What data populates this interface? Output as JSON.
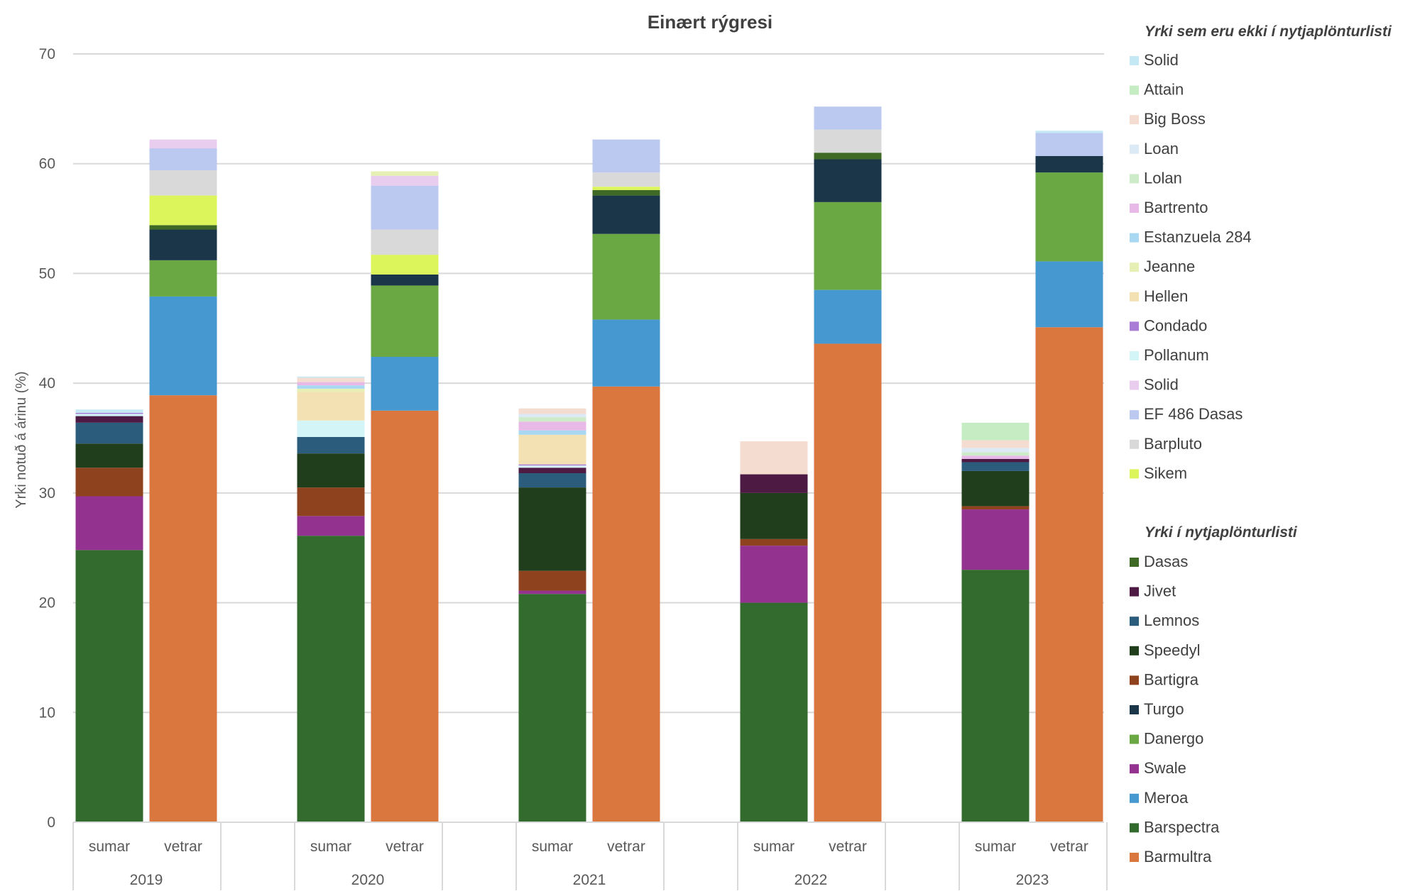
{
  "chart_data": {
    "type": "bar",
    "stacked": true,
    "title": "Einært rýgresi",
    "xlabel": "",
    "ylabel": "Yrki notuð á árinu (%)",
    "ylim": [
      0,
      70
    ],
    "yticks": [
      0,
      10,
      20,
      30,
      40,
      50,
      60,
      70
    ],
    "grid": true,
    "groups": [
      "2019",
      "2020",
      "2021",
      "2022",
      "2023"
    ],
    "subcategories": [
      "sumar",
      "vetrar"
    ],
    "categories": [
      "2019 sumar",
      "2019 vetrar",
      "2020 sumar",
      "2020 vetrar",
      "2021 sumar",
      "2021 vetrar",
      "2022 sumar",
      "2022 vetrar",
      "2023 sumar",
      "2023 vetrar"
    ],
    "legend_headings": {
      "other": "Yrki sem eru ekki í nytjaplönturlisti",
      "listed": "Yrki í nytjaplönturlisti"
    },
    "series": [
      {
        "name": "Barmultra",
        "group": "listed",
        "color": "#D9773F",
        "values": [
          0,
          38.9,
          0,
          37.5,
          0,
          39.7,
          0,
          43.6,
          0,
          45.1
        ]
      },
      {
        "name": "Barspectra",
        "group": "listed",
        "color": "#336B2E",
        "values": [
          24.8,
          0,
          26.1,
          0,
          20.8,
          0,
          20.0,
          0,
          23.0,
          0
        ]
      },
      {
        "name": "Meroa",
        "group": "listed",
        "color": "#4698D0",
        "values": [
          0,
          9.0,
          0,
          4.9,
          0,
          6.1,
          0,
          4.9,
          0,
          6.0
        ]
      },
      {
        "name": "Swale",
        "group": "listed",
        "color": "#94338F",
        "values": [
          4.9,
          0,
          1.8,
          0,
          0.3,
          0,
          5.2,
          0,
          5.5,
          0
        ]
      },
      {
        "name": "Danergo",
        "group": "listed",
        "color": "#69A843",
        "values": [
          0,
          3.3,
          0,
          6.5,
          0,
          7.8,
          0,
          8.0,
          0,
          8.1
        ]
      },
      {
        "name": "Turgo",
        "group": "listed",
        "color": "#1B3549",
        "values": [
          0,
          2.8,
          0,
          1.0,
          0,
          3.5,
          0,
          3.9,
          0,
          1.5
        ]
      },
      {
        "name": "Bartigra",
        "group": "listed",
        "color": "#8E431E",
        "values": [
          2.6,
          0,
          2.6,
          0,
          1.8,
          0,
          0.6,
          0,
          0.3,
          0
        ]
      },
      {
        "name": "Speedyl",
        "group": "listed",
        "color": "#203E1B",
        "values": [
          2.2,
          0,
          3.1,
          0,
          7.6,
          0,
          4.2,
          0,
          3.2,
          0
        ]
      },
      {
        "name": "Lemnos",
        "group": "listed",
        "color": "#2C5C7C",
        "values": [
          1.9,
          0,
          1.5,
          0,
          1.3,
          0,
          0,
          0,
          0.8,
          0
        ]
      },
      {
        "name": "Jivet",
        "group": "listed",
        "color": "#4D1A44",
        "values": [
          0.6,
          0,
          0,
          0,
          0.5,
          0,
          1.7,
          0,
          0.3,
          0
        ]
      },
      {
        "name": "Dasas",
        "group": "listed",
        "color": "#3E6A26",
        "values": [
          0,
          0.4,
          0,
          0,
          0,
          0.5,
          0,
          0.6,
          0,
          0
        ]
      },
      {
        "name": "Sikem",
        "group": "other",
        "color": "#DCF55A",
        "values": [
          0,
          2.7,
          0,
          1.8,
          0,
          0.3,
          0,
          0,
          0,
          0
        ]
      },
      {
        "name": "Barpluto",
        "group": "other",
        "color": "#D9D9D9",
        "values": [
          0,
          2.3,
          0,
          2.3,
          0,
          1.3,
          0,
          2.1,
          0,
          0
        ]
      },
      {
        "name": "EF 486 Dasas",
        "group": "other",
        "color": "#BBC8F0",
        "values": [
          0,
          2.0,
          0,
          4.0,
          0,
          3.0,
          0,
          2.1,
          0,
          2.1
        ]
      },
      {
        "name": "Solid",
        "group": "other",
        "color": "#E8CDEE",
        "values": [
          0,
          0.8,
          0,
          0.9,
          0,
          0,
          0,
          0,
          0,
          0
        ]
      },
      {
        "name": "Pollanum",
        "group": "other",
        "color": "#D4F5F8",
        "values": [
          0.2,
          0,
          1.5,
          0,
          0.2,
          0,
          0,
          0,
          0,
          0
        ]
      },
      {
        "name": "Condado",
        "group": "other",
        "color": "#A97DD6",
        "values": [
          0.1,
          0,
          0,
          0,
          0.1,
          0,
          0,
          0,
          0,
          0
        ]
      },
      {
        "name": "Hellen",
        "group": "other",
        "color": "#F3E1B3",
        "values": [
          0,
          0,
          2.6,
          0,
          2.7,
          0,
          0,
          0,
          0,
          0
        ]
      },
      {
        "name": "Jeanne",
        "group": "other",
        "color": "#E6EFB4",
        "values": [
          0,
          0,
          0.3,
          0.4,
          0,
          0,
          0,
          0,
          0,
          0
        ]
      },
      {
        "name": "Estanzuela 284",
        "group": "other",
        "color": "#A9D9F2",
        "values": [
          0,
          0,
          0.3,
          0,
          0.4,
          0,
          0,
          0,
          0,
          0
        ]
      },
      {
        "name": "Bartrento",
        "group": "other",
        "color": "#E8B8E6",
        "values": [
          0,
          0,
          0.3,
          0,
          0.8,
          0,
          0,
          0,
          0.3,
          0
        ]
      },
      {
        "name": "Lolan",
        "group": "other",
        "color": "#CDEBC8",
        "values": [
          0,
          0,
          0,
          0,
          0.4,
          0,
          0,
          0,
          0.3,
          0
        ]
      },
      {
        "name": "Loan",
        "group": "other",
        "color": "#DCEAF5",
        "values": [
          0,
          0,
          0,
          0,
          0.3,
          0,
          0,
          0,
          0.4,
          0
        ]
      },
      {
        "name": "Big Boss",
        "group": "other",
        "color": "#F4DCD0",
        "values": [
          0,
          0,
          0.4,
          0,
          0.5,
          0,
          3.0,
          0,
          0.7,
          0
        ]
      },
      {
        "name": "Attain",
        "group": "other",
        "color": "#C6ECC4",
        "values": [
          0,
          0,
          0,
          0,
          0,
          0,
          0,
          0,
          1.6,
          0
        ]
      },
      {
        "name": "Solid",
        "group": "other",
        "color": "#C4E9F5",
        "values": [
          0.3,
          0,
          0.1,
          0,
          0,
          0,
          0,
          0,
          0,
          0.2
        ]
      }
    ],
    "legend_order": {
      "other": [
        25,
        24,
        23,
        22,
        21,
        20,
        19,
        18,
        17,
        16,
        15,
        14,
        13,
        12,
        11
      ],
      "listed": [
        10,
        9,
        8,
        7,
        6,
        5,
        4,
        3,
        2,
        1,
        0
      ]
    }
  }
}
